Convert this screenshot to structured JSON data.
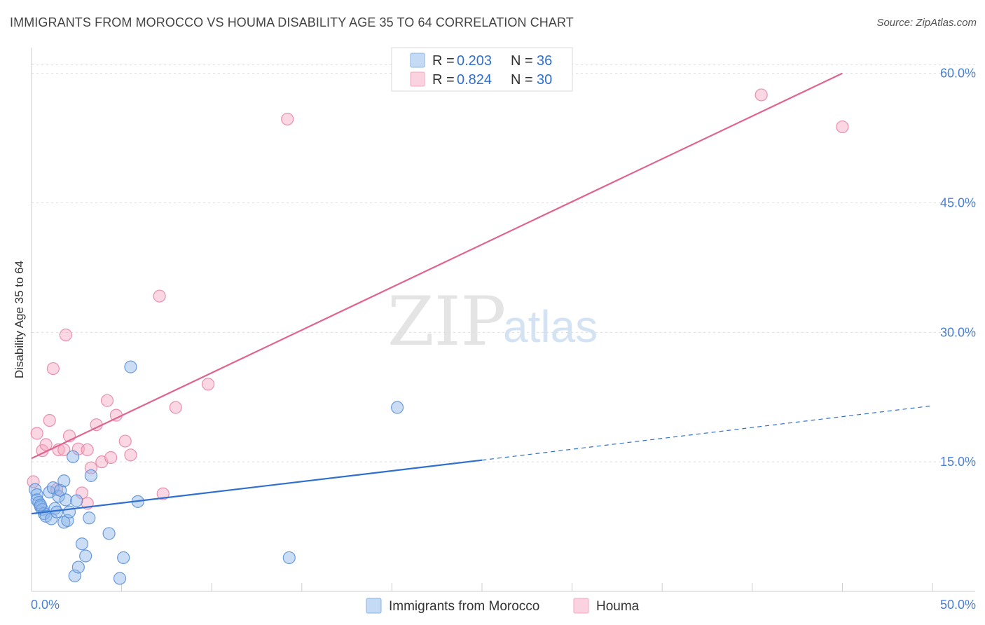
{
  "header": {
    "title": "IMMIGRANTS FROM MOROCCO VS HOUMA DISABILITY AGE 35 TO 64 CORRELATION CHART",
    "source": "Source: ZipAtlas.com"
  },
  "watermark": {
    "zip": "ZIP",
    "atlas": "atlas"
  },
  "chart_data": {
    "type": "scatter",
    "title": "IMMIGRANTS FROM MOROCCO VS HOUMA DISABILITY AGE 35 TO 64 CORRELATION CHART",
    "xlabel": "",
    "ylabel": "Disability Age 35 to 64",
    "xlim": [
      0,
      50
    ],
    "ylim": [
      0,
      62
    ],
    "x_tick_labels": [
      "0.0%",
      "50.0%"
    ],
    "y_ticks": [
      15,
      30,
      45,
      60
    ],
    "y_tick_labels": [
      "15.0%",
      "30.0%",
      "45.0%",
      "60.0%"
    ],
    "grid": true,
    "legend": [
      {
        "name": "Immigrants from Morocco",
        "r_label": "R = ",
        "r": "0.203",
        "n_label": "N = ",
        "n": "36",
        "color": "#8ab4e8"
      },
      {
        "name": "Houma",
        "r_label": "R = ",
        "r": "0.824",
        "n_label": "N = ",
        "n": "30",
        "color": "#f4a7bf"
      }
    ],
    "series": [
      {
        "name": "Immigrants from Morocco",
        "color": "#8ab4e8",
        "stroke": "#5b91d9",
        "trend": {
          "x0": 0,
          "y0": 9.0,
          "x1": 25,
          "y1": 15.2,
          "dash_to_x": 50,
          "dash_to_y": 21.5,
          "color": "#2f6fce"
        },
        "points": [
          [
            0.2,
            11.8
          ],
          [
            0.3,
            11.2
          ],
          [
            0.3,
            10.6
          ],
          [
            0.4,
            10.3
          ],
          [
            0.5,
            9.8
          ],
          [
            0.6,
            9.5
          ],
          [
            0.7,
            9.0
          ],
          [
            0.8,
            8.7
          ],
          [
            1.0,
            11.5
          ],
          [
            1.1,
            8.4
          ],
          [
            1.2,
            12.0
          ],
          [
            1.3,
            9.6
          ],
          [
            1.4,
            9.2
          ],
          [
            1.5,
            11.0
          ],
          [
            1.6,
            11.7
          ],
          [
            1.8,
            12.8
          ],
          [
            1.8,
            8.0
          ],
          [
            1.9,
            10.6
          ],
          [
            2.0,
            8.2
          ],
          [
            2.1,
            9.2
          ],
          [
            2.3,
            15.6
          ],
          [
            2.4,
            1.8
          ],
          [
            2.5,
            10.5
          ],
          [
            2.6,
            2.8
          ],
          [
            2.8,
            5.5
          ],
          [
            3.0,
            4.1
          ],
          [
            3.2,
            8.5
          ],
          [
            3.3,
            13.4
          ],
          [
            4.3,
            6.7
          ],
          [
            4.9,
            1.5
          ],
          [
            5.1,
            3.9
          ],
          [
            5.5,
            26.0
          ],
          [
            5.9,
            10.4
          ],
          [
            14.3,
            3.9
          ],
          [
            20.3,
            21.3
          ],
          [
            0.5,
            10.0
          ]
        ]
      },
      {
        "name": "Houma",
        "color": "#f4a7bf",
        "stroke": "#e886a5",
        "trend": {
          "x0": 0,
          "y0": 15.4,
          "x1": 45,
          "y1": 60.0,
          "color": "#e0648f"
        },
        "points": [
          [
            0.1,
            12.7
          ],
          [
            0.3,
            18.3
          ],
          [
            0.6,
            16.3
          ],
          [
            0.8,
            17.0
          ],
          [
            1.0,
            19.8
          ],
          [
            1.2,
            25.8
          ],
          [
            1.4,
            11.8
          ],
          [
            1.5,
            16.4
          ],
          [
            1.8,
            16.4
          ],
          [
            1.9,
            29.7
          ],
          [
            2.1,
            18.0
          ],
          [
            2.6,
            16.5
          ],
          [
            2.8,
            11.4
          ],
          [
            3.1,
            10.2
          ],
          [
            3.1,
            16.4
          ],
          [
            3.3,
            14.3
          ],
          [
            3.6,
            19.3
          ],
          [
            3.9,
            15.0
          ],
          [
            4.2,
            22.1
          ],
          [
            4.4,
            15.5
          ],
          [
            4.7,
            20.4
          ],
          [
            5.2,
            17.4
          ],
          [
            5.5,
            15.8
          ],
          [
            7.1,
            34.2
          ],
          [
            7.3,
            11.3
          ],
          [
            8.0,
            21.3
          ],
          [
            9.8,
            24.0
          ],
          [
            14.2,
            54.7
          ],
          [
            40.5,
            57.5
          ],
          [
            45.0,
            53.8
          ]
        ]
      }
    ]
  }
}
